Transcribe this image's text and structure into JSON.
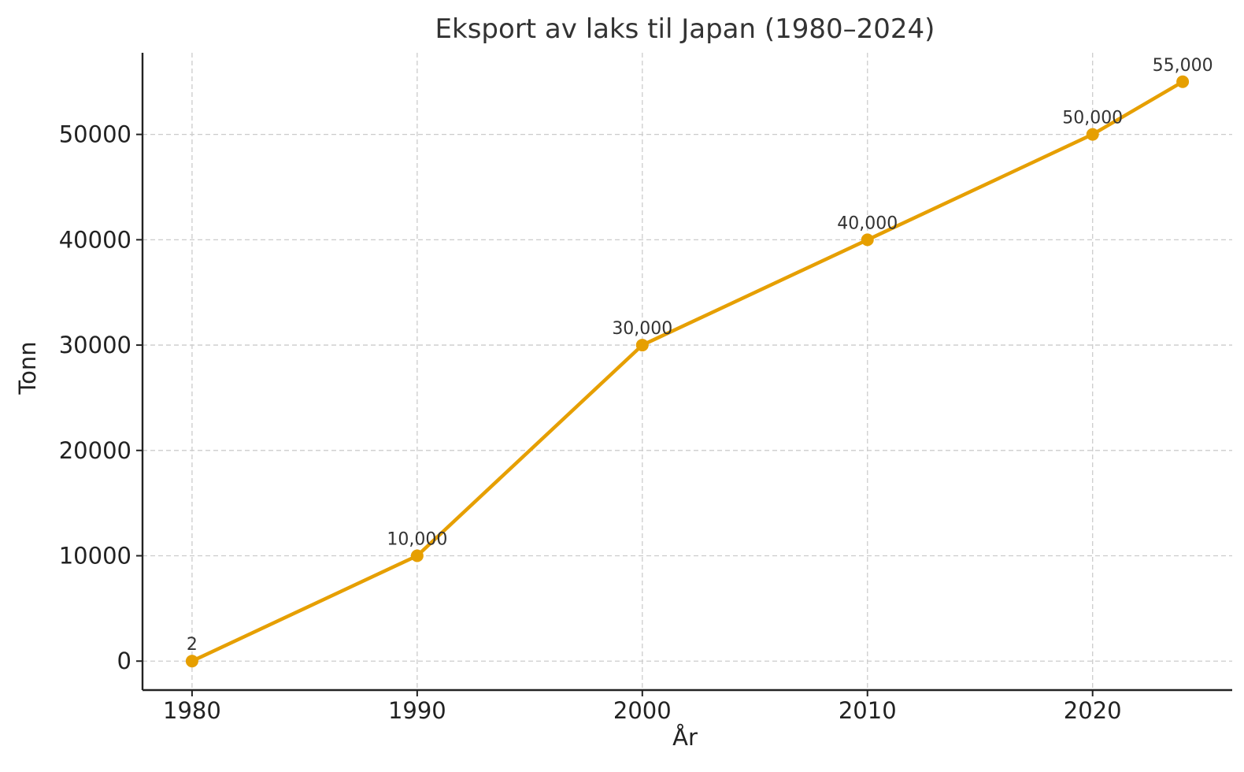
{
  "chart_data": {
    "type": "line",
    "title": "Eksport av laks til Japan (1980–2024)",
    "xlabel": "År",
    "ylabel": "Tonn",
    "x": [
      1980,
      1990,
      2000,
      2010,
      2020,
      2024
    ],
    "series": [
      {
        "values": [
          2,
          10000,
          30000,
          40000,
          50000,
          55000
        ],
        "data_labels": [
          "2",
          "10,000",
          "30,000",
          "40,000",
          "50,000",
          "55,000"
        ],
        "color": "#E69F00"
      }
    ],
    "xticks": [
      1980,
      1990,
      2000,
      2010,
      2020
    ],
    "xtick_labels": [
      "1980",
      "1990",
      "2000",
      "2010",
      "2020"
    ],
    "yticks": [
      0,
      10000,
      20000,
      30000,
      40000,
      50000
    ],
    "ytick_labels": [
      "0",
      "10000",
      "20000",
      "30000",
      "40000",
      "50000"
    ],
    "xlim": [
      1977.8,
      2026.2
    ],
    "ylim": [
      -2750,
      57750
    ],
    "grid": true,
    "marker": "circle"
  }
}
